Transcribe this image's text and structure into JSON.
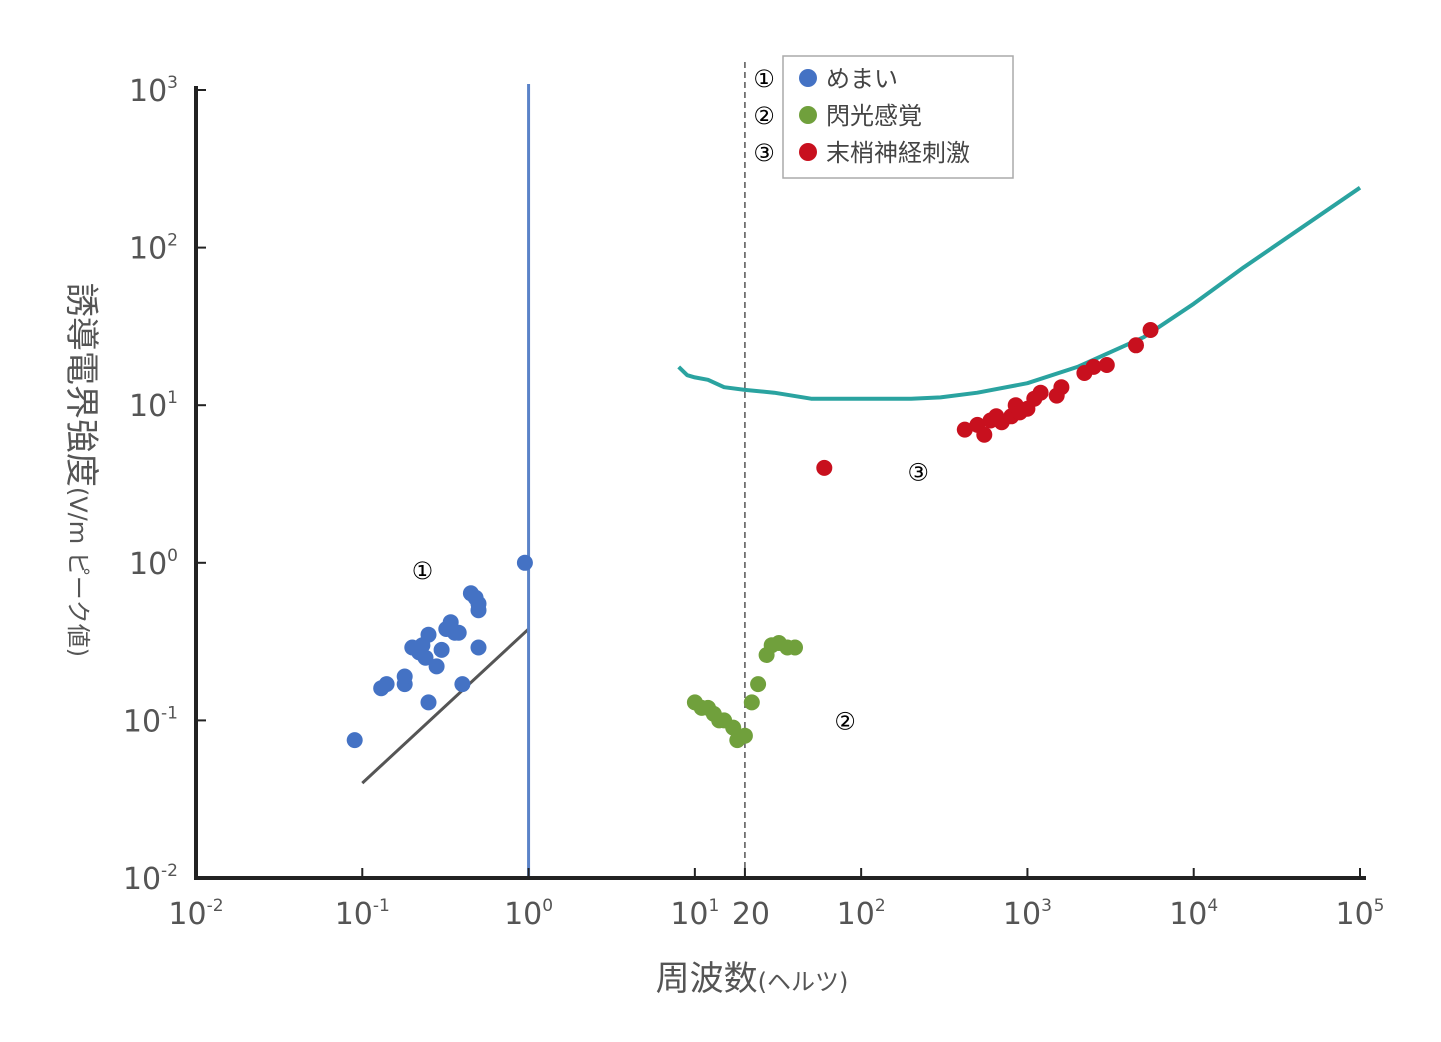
{
  "chart_data": {
    "type": "scatter",
    "x_scale": "log",
    "y_scale": "log",
    "xlim": [
      0.01,
      100000
    ],
    "ylim": [
      0.01,
      1000
    ],
    "xlabel": "周波数",
    "xlabel_unit": "(ヘルツ)",
    "ylabel": "誘導電界強度",
    "ylabel_unit": "(V/m ピーク値)",
    "x_ticks": [
      {
        "value": 0.01,
        "base": "10",
        "exp": "-2"
      },
      {
        "value": 0.1,
        "base": "10",
        "exp": "-1"
      },
      {
        "value": 1,
        "base": "10",
        "exp": "0"
      },
      {
        "value": 10,
        "base": "10",
        "exp": "1"
      },
      {
        "value": 20,
        "base": "20",
        "exp": ""
      },
      {
        "value": 100,
        "base": "10",
        "exp": "2"
      },
      {
        "value": 1000,
        "base": "10",
        "exp": "3"
      },
      {
        "value": 10000,
        "base": "10",
        "exp": "4"
      },
      {
        "value": 100000,
        "base": "10",
        "exp": "5"
      }
    ],
    "y_ticks": [
      {
        "value": 0.01,
        "base": "10",
        "exp": "-2"
      },
      {
        "value": 0.1,
        "base": "10",
        "exp": "-1"
      },
      {
        "value": 1,
        "base": "10",
        "exp": "0"
      },
      {
        "value": 10,
        "base": "10",
        "exp": "1"
      },
      {
        "value": 100,
        "base": "10",
        "exp": "2"
      },
      {
        "value": 1000,
        "base": "10",
        "exp": "3"
      }
    ],
    "legend": {
      "position": "top-center",
      "entries": [
        {
          "marker": "①",
          "label": "めまい",
          "color": "#4472c4"
        },
        {
          "marker": "②",
          "label": "閃光感覚",
          "color": "#70a03c"
        },
        {
          "marker": "③",
          "label": "末梢神経刺激",
          "color": "#c8101e"
        }
      ]
    },
    "series": [
      {
        "marker": "①",
        "color": "#4472c4",
        "points": [
          [
            0.09,
            0.075
          ],
          [
            0.13,
            0.16
          ],
          [
            0.14,
            0.17
          ],
          [
            0.18,
            0.17
          ],
          [
            0.18,
            0.19
          ],
          [
            0.2,
            0.29
          ],
          [
            0.22,
            0.27
          ],
          [
            0.23,
            0.3
          ],
          [
            0.24,
            0.25
          ],
          [
            0.25,
            0.35
          ],
          [
            0.25,
            0.13
          ],
          [
            0.28,
            0.22
          ],
          [
            0.3,
            0.28
          ],
          [
            0.32,
            0.38
          ],
          [
            0.34,
            0.42
          ],
          [
            0.36,
            0.36
          ],
          [
            0.38,
            0.36
          ],
          [
            0.4,
            0.17
          ],
          [
            0.45,
            0.64
          ],
          [
            0.48,
            0.6
          ],
          [
            0.5,
            0.55
          ],
          [
            0.5,
            0.5
          ],
          [
            0.5,
            0.29
          ],
          [
            0.95,
            1.0
          ]
        ]
      },
      {
        "marker": "②",
        "color": "#70a03c",
        "points": [
          [
            10,
            0.13
          ],
          [
            11,
            0.12
          ],
          [
            12,
            0.12
          ],
          [
            13,
            0.11
          ],
          [
            14,
            0.1
          ],
          [
            15,
            0.1
          ],
          [
            17,
            0.09
          ],
          [
            18,
            0.075
          ],
          [
            20,
            0.08
          ],
          [
            22,
            0.13
          ],
          [
            24,
            0.17
          ],
          [
            27,
            0.26
          ],
          [
            29,
            0.3
          ],
          [
            32,
            0.31
          ],
          [
            36,
            0.29
          ],
          [
            40,
            0.29
          ]
        ]
      },
      {
        "marker": "③",
        "color": "#c8101e",
        "points": [
          [
            60,
            4.0
          ],
          [
            420,
            7.0
          ],
          [
            500,
            7.5
          ],
          [
            550,
            6.5
          ],
          [
            600,
            8.0
          ],
          [
            650,
            8.5
          ],
          [
            700,
            7.8
          ],
          [
            800,
            8.5
          ],
          [
            850,
            10.0
          ],
          [
            900,
            9.0
          ],
          [
            1000,
            9.5
          ],
          [
            1100,
            11.0
          ],
          [
            1200,
            12.0
          ],
          [
            1500,
            11.5
          ],
          [
            1600,
            13.0
          ],
          [
            2200,
            16.0
          ],
          [
            2500,
            17.5
          ],
          [
            3000,
            18.0
          ],
          [
            4500,
            24.0
          ],
          [
            5500,
            30.0
          ]
        ]
      }
    ],
    "lines": [
      {
        "kind": "curve",
        "color": "#2aa3a0",
        "points": [
          [
            8,
            17.5
          ],
          [
            9,
            15.5
          ],
          [
            10,
            15
          ],
          [
            12,
            14.5
          ],
          [
            15,
            13
          ],
          [
            20,
            12.5
          ],
          [
            30,
            12
          ],
          [
            50,
            11
          ],
          [
            100,
            11
          ],
          [
            200,
            11
          ],
          [
            300,
            11.2
          ],
          [
            500,
            12
          ],
          [
            1000,
            13.8
          ],
          [
            2000,
            17.5
          ],
          [
            5000,
            27
          ],
          [
            10000,
            44
          ],
          [
            20000,
            75
          ],
          [
            100000,
            240
          ]
        ]
      },
      {
        "kind": "threshold",
        "color": "#555555",
        "points": [
          [
            0.1,
            0.04
          ],
          [
            1,
            0.38
          ]
        ]
      },
      {
        "kind": "vertical",
        "color": "#5b83c8",
        "x": 1.0
      },
      {
        "kind": "vertical-dashed",
        "color": "#555555",
        "x": 20
      }
    ],
    "annotations": [
      {
        "text": "①",
        "x": 0.23,
        "y": 0.9
      },
      {
        "text": "②",
        "x": 80,
        "y": 0.1
      },
      {
        "text": "③",
        "x": 220,
        "y": 3.8
      }
    ]
  }
}
